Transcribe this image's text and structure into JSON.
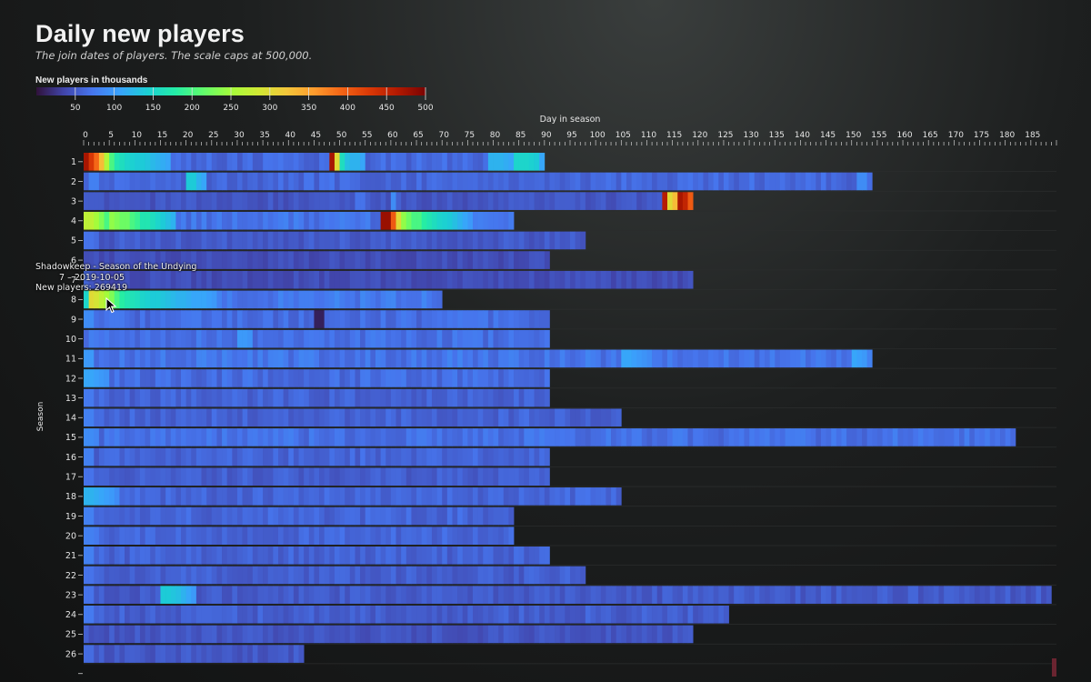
{
  "header": {
    "title": "Daily new players",
    "subtitle": "The join dates of players. The scale caps at 500,000."
  },
  "legend": {
    "title": "New players in thousands",
    "ticks": [
      50,
      100,
      150,
      200,
      250,
      300,
      350,
      400,
      450,
      500
    ],
    "colors": [
      "#30123b",
      "#4145ab",
      "#4675ed",
      "#39a2fc",
      "#1bcfd4",
      "#24eca6",
      "#61fc6c",
      "#a4fc3b",
      "#d1e834",
      "#f3c63a",
      "#fe9b2d",
      "#f36315",
      "#d93806",
      "#b11901",
      "#7a0402"
    ]
  },
  "tooltip": {
    "season": "Shadowkeep - Season of the Undying",
    "date": "2019-10-05",
    "players": "New players: 269419"
  },
  "chart_data": {
    "type": "heatmap",
    "title": "Daily new players",
    "subtitle": "The join dates of players. The scale caps at 500,000.",
    "xlabel": "Day in season",
    "ylabel": "Season",
    "x_ticks": [
      0,
      5,
      10,
      15,
      20,
      25,
      30,
      35,
      40,
      45,
      50,
      55,
      60,
      65,
      70,
      75,
      80,
      85,
      90,
      95,
      100,
      105,
      110,
      115,
      120,
      125,
      130,
      135,
      140,
      145,
      150,
      155,
      160,
      165,
      170,
      175,
      180,
      185
    ],
    "xlim": [
      0,
      190
    ],
    "color_range": [
      0,
      500
    ],
    "color_unit": "New players in thousands",
    "base_color": "#3a2e7a",
    "seasons": [
      {
        "season": "1",
        "days": 90,
        "base": 62,
        "peaks": [
          [
            0,
            470
          ],
          [
            1,
            430
          ],
          [
            2,
            390
          ],
          [
            3,
            330
          ],
          [
            4,
            260
          ],
          [
            5,
            200
          ],
          [
            6,
            170
          ],
          [
            7,
            160
          ],
          [
            8,
            150
          ],
          [
            9,
            145
          ],
          [
            10,
            140
          ],
          [
            11,
            140
          ],
          [
            12,
            135
          ],
          [
            13,
            125
          ],
          [
            14,
            120
          ],
          [
            15,
            115
          ],
          [
            16,
            110
          ],
          [
            48,
            470
          ],
          [
            49,
            300
          ],
          [
            50,
            160
          ],
          [
            51,
            130
          ],
          [
            52,
            120
          ],
          [
            53,
            120
          ],
          [
            54,
            110
          ],
          [
            79,
            120
          ],
          [
            80,
            120
          ],
          [
            81,
            120
          ],
          [
            82,
            115
          ],
          [
            83,
            110
          ],
          [
            84,
            150
          ],
          [
            85,
            150
          ],
          [
            86,
            150
          ],
          [
            87,
            145
          ],
          [
            88,
            140
          ],
          [
            89,
            110
          ]
        ]
      },
      {
        "season": "2",
        "days": 154,
        "base": 62,
        "peaks": [
          [
            1,
            80
          ],
          [
            2,
            80
          ],
          [
            20,
            140
          ],
          [
            21,
            140
          ],
          [
            22,
            120
          ],
          [
            23,
            110
          ],
          [
            151,
            90
          ],
          [
            152,
            90
          ]
        ]
      },
      {
        "season": "3",
        "days": 119,
        "base": 48,
        "peaks": [
          [
            53,
            70
          ],
          [
            54,
            70
          ],
          [
            60,
            90
          ],
          [
            113,
            460
          ],
          [
            114,
            300
          ],
          [
            115,
            330
          ],
          [
            116,
            470
          ],
          [
            117,
            450
          ],
          [
            118,
            400
          ]
        ]
      },
      {
        "season": "4",
        "days": 84,
        "base": 70,
        "peaks": [
          [
            0,
            270
          ],
          [
            1,
            270
          ],
          [
            2,
            250
          ],
          [
            3,
            230
          ],
          [
            4,
            200
          ],
          [
            5,
            240
          ],
          [
            6,
            230
          ],
          [
            7,
            220
          ],
          [
            8,
            220
          ],
          [
            9,
            200
          ],
          [
            10,
            190
          ],
          [
            11,
            170
          ],
          [
            12,
            170
          ],
          [
            13,
            160
          ],
          [
            14,
            150
          ],
          [
            15,
            140
          ],
          [
            16,
            130
          ],
          [
            17,
            120
          ],
          [
            58,
            480
          ],
          [
            59,
            480
          ],
          [
            60,
            400
          ],
          [
            61,
            300
          ],
          [
            62,
            240
          ],
          [
            63,
            220
          ],
          [
            64,
            200
          ],
          [
            65,
            200
          ],
          [
            66,
            180
          ],
          [
            67,
            170
          ],
          [
            68,
            160
          ],
          [
            69,
            150
          ],
          [
            70,
            145
          ],
          [
            71,
            140
          ],
          [
            72,
            130
          ],
          [
            73,
            120
          ],
          [
            74,
            110
          ],
          [
            75,
            100
          ]
        ]
      },
      {
        "season": "5",
        "days": 98,
        "base": 52,
        "peaks": [
          [
            0,
            70
          ],
          [
            1,
            70
          ],
          [
            2,
            65
          ]
        ]
      },
      {
        "season": "6",
        "days": 91,
        "base": 42,
        "peaks": []
      },
      {
        "season": "7",
        "days": 119,
        "base": 42,
        "peaks": [
          [
            0,
            60
          ]
        ]
      },
      {
        "season": "8",
        "days": 70,
        "base": 75,
        "peaks": [
          [
            0,
            150
          ],
          [
            1,
            300
          ],
          [
            2,
            290
          ],
          [
            3,
            269
          ],
          [
            4,
            250
          ],
          [
            5,
            230
          ],
          [
            6,
            200
          ],
          [
            7,
            180
          ],
          [
            8,
            170
          ],
          [
            9,
            165
          ],
          [
            10,
            160
          ],
          [
            11,
            150
          ],
          [
            12,
            145
          ],
          [
            13,
            140
          ],
          [
            14,
            140
          ],
          [
            15,
            135
          ],
          [
            16,
            130
          ],
          [
            17,
            125
          ],
          [
            18,
            120
          ],
          [
            19,
            120
          ],
          [
            20,
            115
          ],
          [
            21,
            110
          ],
          [
            22,
            110
          ],
          [
            23,
            110
          ],
          [
            24,
            105
          ],
          [
            25,
            100
          ]
        ]
      },
      {
        "season": "9",
        "days": 91,
        "base": 65,
        "peaks": [
          [
            0,
            90
          ],
          [
            1,
            90
          ],
          [
            45,
            10
          ],
          [
            46,
            10
          ]
        ]
      },
      {
        "season": "10",
        "days": 91,
        "base": 68,
        "peaks": [
          [
            30,
            100
          ],
          [
            31,
            100
          ],
          [
            32,
            95
          ]
        ]
      },
      {
        "season": "11",
        "days": 154,
        "base": 72,
        "peaks": [
          [
            0,
            100
          ],
          [
            1,
            100
          ],
          [
            105,
            110
          ],
          [
            106,
            110
          ],
          [
            107,
            105
          ],
          [
            108,
            100
          ],
          [
            109,
            95
          ],
          [
            110,
            90
          ],
          [
            150,
            110
          ],
          [
            151,
            105
          ],
          [
            152,
            100
          ]
        ]
      },
      {
        "season": "12",
        "days": 91,
        "base": 65,
        "peaks": [
          [
            0,
            110
          ],
          [
            1,
            110
          ],
          [
            2,
            105
          ],
          [
            3,
            100
          ],
          [
            4,
            95
          ]
        ]
      },
      {
        "season": "13",
        "days": 91,
        "base": 58,
        "peaks": [
          [
            0,
            75
          ],
          [
            1,
            75
          ]
        ]
      },
      {
        "season": "14",
        "days": 105,
        "base": 58,
        "peaks": [
          [
            0,
            80
          ],
          [
            1,
            80
          ]
        ]
      },
      {
        "season": "15",
        "days": 182,
        "base": 68,
        "peaks": [
          [
            0,
            90
          ],
          [
            1,
            90
          ],
          [
            2,
            85
          ]
        ]
      },
      {
        "season": "16",
        "days": 91,
        "base": 60,
        "peaks": [
          [
            0,
            80
          ],
          [
            1,
            80
          ]
        ]
      },
      {
        "season": "17",
        "days": 91,
        "base": 55,
        "peaks": [
          [
            0,
            70
          ],
          [
            1,
            70
          ]
        ]
      },
      {
        "season": "18",
        "days": 105,
        "base": 60,
        "peaks": [
          [
            0,
            120
          ],
          [
            1,
            120
          ],
          [
            2,
            115
          ],
          [
            3,
            110
          ],
          [
            4,
            105
          ],
          [
            5,
            100
          ],
          [
            6,
            90
          ]
        ]
      },
      {
        "season": "19",
        "days": 84,
        "base": 60,
        "peaks": [
          [
            0,
            80
          ],
          [
            1,
            80
          ]
        ]
      },
      {
        "season": "20",
        "days": 84,
        "base": 60,
        "peaks": [
          [
            0,
            80
          ],
          [
            1,
            80
          ],
          [
            2,
            75
          ]
        ]
      },
      {
        "season": "21",
        "days": 91,
        "base": 58,
        "peaks": [
          [
            0,
            80
          ],
          [
            1,
            80
          ]
        ]
      },
      {
        "season": "22",
        "days": 98,
        "base": 55,
        "peaks": [
          [
            0,
            70
          ],
          [
            1,
            70
          ]
        ]
      },
      {
        "season": "23",
        "days": 189,
        "base": 52,
        "peaks": [
          [
            0,
            70
          ],
          [
            1,
            70
          ],
          [
            15,
            140
          ],
          [
            16,
            140
          ],
          [
            17,
            135
          ],
          [
            18,
            130
          ],
          [
            19,
            120
          ],
          [
            20,
            110
          ],
          [
            21,
            100
          ]
        ]
      },
      {
        "season": "24",
        "days": 126,
        "base": 55,
        "peaks": [
          [
            0,
            75
          ],
          [
            1,
            75
          ]
        ]
      },
      {
        "season": "25",
        "days": 119,
        "base": 48,
        "peaks": []
      },
      {
        "season": "26",
        "days": 43,
        "base": 50,
        "peaks": [
          [
            0,
            65
          ],
          [
            1,
            65
          ]
        ]
      }
    ]
  }
}
